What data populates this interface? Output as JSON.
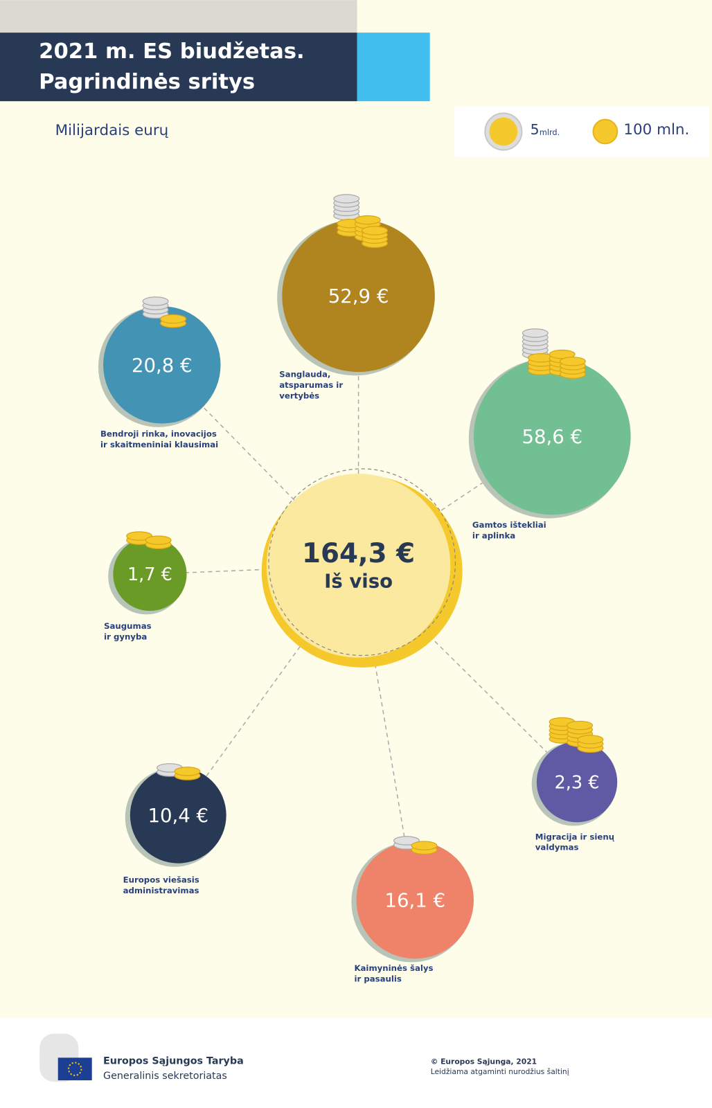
{
  "header": {
    "title_lines": [
      "2021 m. ES biudžetas.",
      "Pagrindinės sritys"
    ],
    "subtitle": "Milijardais eurų"
  },
  "legend": {
    "big_coin": {
      "number": "5",
      "unit": "mlrd."
    },
    "small_coin": {
      "label": "100 mln."
    }
  },
  "total": {
    "value": "164,3 €",
    "label": "Iš viso"
  },
  "areas": [
    {
      "value": "52,9 €",
      "label_lines": [
        "Sanglauda,",
        "atsparumas ir",
        "vertybės"
      ]
    },
    {
      "value": "20,8 €",
      "label_lines": [
        "Bendroji rinka, inovacijos",
        "ir skaitmeniniai klausimai"
      ]
    },
    {
      "value": "58,6 €",
      "label_lines": [
        "Gamtos ištekliai",
        "ir aplinka"
      ]
    },
    {
      "value": "1,7 €",
      "label_lines": [
        "Saugumas",
        "ir gynyba"
      ]
    },
    {
      "value": "10,4 €",
      "label_lines": [
        "Europos viešasis",
        "administravimas"
      ]
    },
    {
      "value": "16,1 €",
      "label_lines": [
        "Kaimyninės šalys",
        "ir pasaulis"
      ]
    },
    {
      "value": "2,3 €",
      "label_lines": [
        "Migracija ir sienų",
        "valdymas"
      ]
    }
  ],
  "footer": {
    "org_lines": [
      "Europos Sąjungos Taryba",
      "Generalinis sekretoriatas"
    ],
    "copyright_lines": [
      "© Europos Sąjunga, 2021",
      "Leidžiama atgaminti nurodžius šaltinį"
    ]
  }
}
